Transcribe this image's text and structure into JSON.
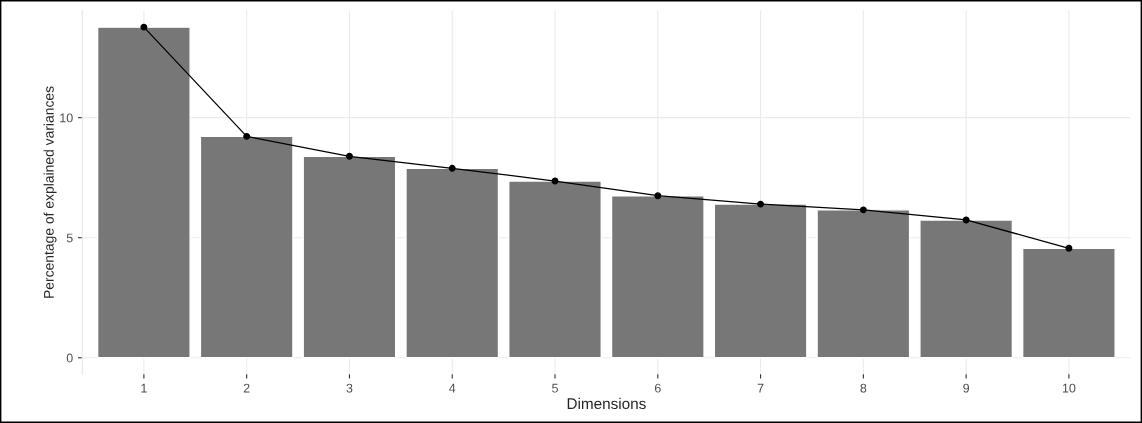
{
  "chart_data": {
    "type": "bar",
    "xlabel": "Dimensions",
    "ylabel": "Percentage of explained variances",
    "categories": [
      "1",
      "2",
      "3",
      "4",
      "5",
      "6",
      "7",
      "8",
      "9",
      "10"
    ],
    "series": [
      {
        "color": "#777777",
        "values": [
          13.77,
          9.22,
          8.39,
          7.89,
          7.36,
          6.75,
          6.4,
          6.16,
          5.74,
          4.56
        ]
      },
      {
        "type": "line",
        "color": "#000000",
        "marker": "circle",
        "line_style": "solid",
        "values": [
          13.77,
          9.22,
          8.39,
          7.89,
          7.36,
          6.75,
          6.4,
          6.16,
          5.74,
          4.56
        ]
      }
    ],
    "ylim": [
      -0.69,
      14.46
    ],
    "yticks": [
      0,
      5,
      10
    ],
    "grid": true,
    "legend": false
  }
}
